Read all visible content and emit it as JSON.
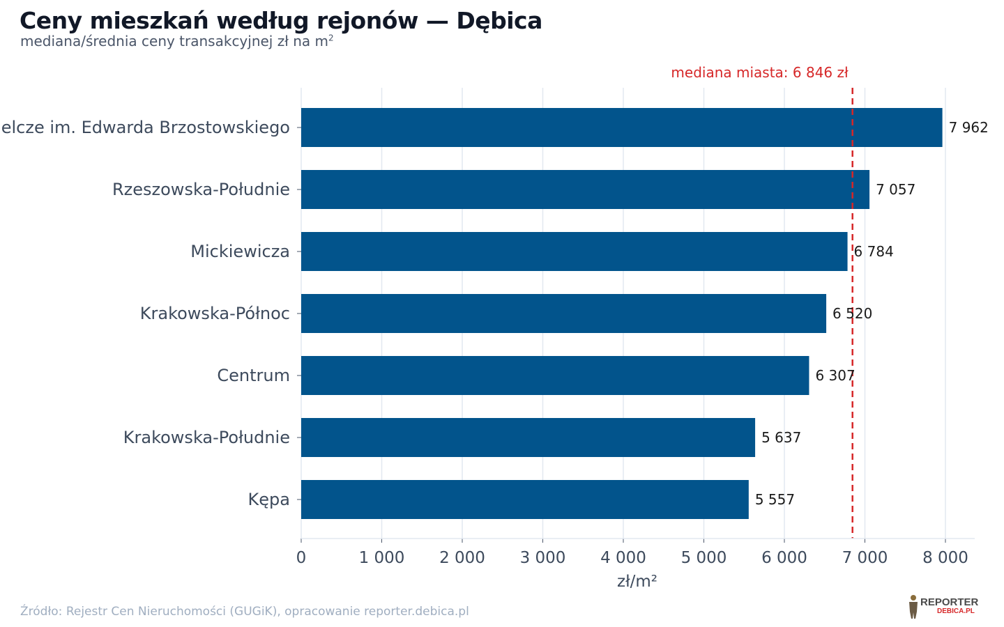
{
  "title": "Ceny mieszkań według rejonów — Dębica",
  "subtitle_main": "mediana/średnia ceny transakcyjnej zł na m",
  "subtitle_sup": "2",
  "source": "Źródło: Rejestr Cen Nieruchomości (GUGiK), opracowanie reporter.debica.pl",
  "logo": {
    "line1": "REPORTER",
    "line2": "DEBICA.PL"
  },
  "colors": {
    "bar": "#02548c",
    "median_line": "#d62728",
    "grid": "#e2e8f0",
    "axis_text": "#3d4a5c"
  },
  "chart_data": {
    "type": "bar",
    "orientation": "horizontal",
    "categories": [
      "Osiedle Mieszkaniowe Spółdzielcze im. Edwarda Brzostowskiego",
      "Rzeszowska-Południe",
      "Mickiewicza",
      "Krakowska-Północ",
      "Centrum",
      "Krakowska-Południe",
      "Kępa"
    ],
    "values": [
      7962,
      7057,
      6784,
      6520,
      6307,
      5637,
      5557
    ],
    "value_labels": [
      "7 962",
      "7 057",
      "6 784",
      "6 520",
      "6 307",
      "5 637",
      "5 557"
    ],
    "xlabel": "zł/m²",
    "xlim": [
      0,
      8350
    ],
    "xticks": [
      0,
      1000,
      2000,
      3000,
      4000,
      5000,
      6000,
      7000,
      8000
    ],
    "xtick_labels": [
      "0",
      "1 000",
      "2 000",
      "3 000",
      "4 000",
      "5 000",
      "6 000",
      "7 000",
      "8 000"
    ],
    "grid": true,
    "reference_line": {
      "value": 6846,
      "label": "mediana miasta: 6 846 zł"
    }
  }
}
